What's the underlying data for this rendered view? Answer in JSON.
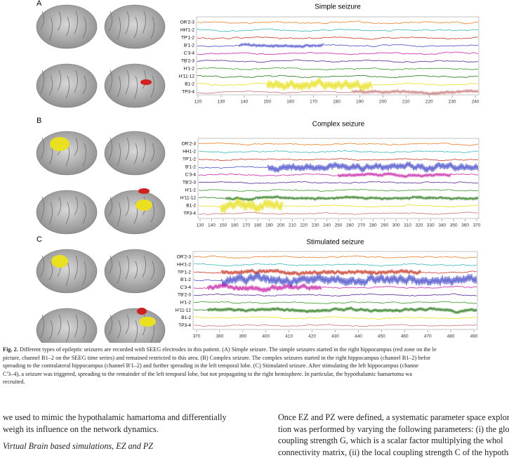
{
  "figure": {
    "panels": [
      {
        "label": "A",
        "title": "Simple seizure",
        "traces": [
          {
            "label": "OR'2-3",
            "color": "#e8802a"
          },
          {
            "label": "HH'1-2",
            "color": "#3fb8b8"
          },
          {
            "label": "TP'1-2",
            "color": "#c83a2a"
          },
          {
            "label": "B'1-2",
            "color": "#4a4fc8"
          },
          {
            "label": "C'3-4",
            "color": "#c827a8"
          },
          {
            "label": "TB'2-3",
            "color": "#5a2a9a"
          },
          {
            "label": "H'1-2",
            "color": "#3a9a2a"
          },
          {
            "label": "H'11-12",
            "color": "#2a7a1a"
          },
          {
            "label": "B1-2",
            "color": "#e8e020"
          },
          {
            "label": "TP3-4",
            "color": "#c87878"
          }
        ],
        "xlim": [
          118,
          242
        ],
        "xticks": [
          120,
          130,
          140,
          150,
          160,
          170,
          180,
          190,
          200,
          210,
          220,
          230,
          240
        ]
      },
      {
        "label": "B",
        "title": "Complex seizure",
        "traces": [
          {
            "label": "OR'2-3",
            "color": "#e8802a"
          },
          {
            "label": "HH1-2",
            "color": "#3fb8b8"
          },
          {
            "label": "TP'1-2",
            "color": "#c83a2a"
          },
          {
            "label": "B'1-2",
            "color": "#4a4fc8"
          },
          {
            "label": "C'3-4",
            "color": "#c827a8"
          },
          {
            "label": "TB'2-3",
            "color": "#5a2a9a"
          },
          {
            "label": "H'1-2",
            "color": "#3a9a2a"
          },
          {
            "label": "H'11-12",
            "color": "#2a7a1a"
          },
          {
            "label": "B1-2",
            "color": "#e8e020"
          },
          {
            "label": "TP3-4",
            "color": "#c87878"
          }
        ],
        "xlim": [
          128,
          372
        ],
        "xticks": [
          130,
          140,
          150,
          160,
          170,
          180,
          190,
          200,
          210,
          220,
          230,
          240,
          250,
          260,
          270,
          280,
          290,
          300,
          310,
          320,
          330,
          340,
          350,
          360,
          370
        ]
      },
      {
        "label": "C",
        "title": "Stimulated seizure",
        "traces": [
          {
            "label": "OR'2-3",
            "color": "#e8802a"
          },
          {
            "label": "HH'1-2",
            "color": "#3fb8b8"
          },
          {
            "label": "TP'1-2",
            "color": "#c83a2a"
          },
          {
            "label": "B'1-2",
            "color": "#4a4fc8"
          },
          {
            "label": "C'3-4",
            "color": "#c827a8"
          },
          {
            "label": "TB'2-3",
            "color": "#5a2a9a"
          },
          {
            "label": "H'1-2",
            "color": "#3a9a2a"
          },
          {
            "label": "H'11-12",
            "color": "#2a7a1a"
          },
          {
            "label": "B1-2",
            "color": "#e8e020"
          },
          {
            "label": "TP3-4",
            "color": "#c87878"
          }
        ],
        "xlim": [
          369,
          492
        ],
        "xticks": [
          370,
          380,
          390,
          400,
          410,
          420,
          430,
          440,
          450,
          460,
          470,
          480,
          490
        ]
      }
    ],
    "caption": {
      "label": "Fig. 2.",
      "lines": [
        " Different types of epileptic seizures are recorded with SEEG electrodes in this patient. (A) Simple seizure. The simple seizures started in the right hippocampus (red zone on the le",
        "picture, channel B1–2 on the SEEG time series) and remained restricted to this area. (B) Complex seizure. The complex seizures started in the right hippocampus (channel B1–2) befor",
        "spreading to the contralateral hippocampus (channel B'1–2) and further spreading in the left temporal lobe. (C) Stimulated seizure. After stimulating the left hippocampus (channe",
        "C'3–4), a seizure was triggered, spreading to the remainder of the left temporal lobe, but not propagating to the right hemisphere. In particular, the hypothalamic hamartoma wa",
        "recruited."
      ]
    }
  },
  "body": {
    "left": [
      "we used to mimic the hypothalamic hamartoma and differentially",
      "weigh its influence on the network dynamics."
    ],
    "left_heading": "Virtual Brain based simulations, EZ and PZ",
    "right": [
      "Once EZ and PZ were defined, a systematic parameter space explora-",
      "tion was performed by varying the following parameters: (i) the global",
      "coupling strength G, which is a scalar factor multiplying the whol",
      "connectivity matrix, (ii) the local coupling strength C     of the hypotha"
    ]
  }
}
